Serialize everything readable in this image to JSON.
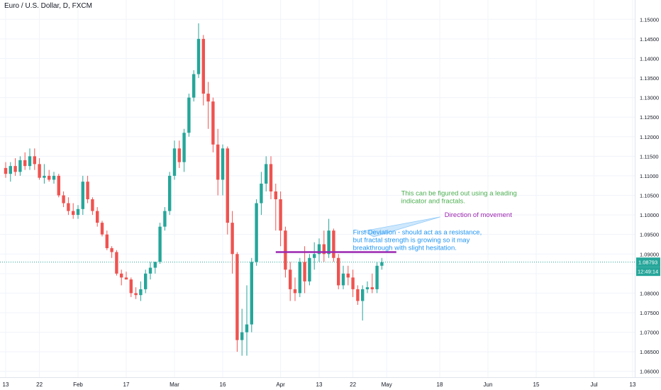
{
  "chart_data": {
    "type": "candlestick",
    "title": "Euro / U.S. Dollar, D, FXCM",
    "colors": {
      "up": "#26a69a",
      "down": "#ef5350",
      "level_line": "#9c27b0",
      "price_line": "#26a69a",
      "grid": "#f0f3fa"
    },
    "ylim": [
      1.0585,
      1.1535
    ],
    "y_ticks": [
      "1.15000",
      "1.14500",
      "1.14000",
      "1.13500",
      "1.13000",
      "1.12500",
      "1.12000",
      "1.11500",
      "1.11000",
      "1.10500",
      "1.10000",
      "1.09500",
      "1.09000",
      "1.08500",
      "1.08000",
      "1.07500",
      "1.07000",
      "1.06500",
      "1.06000"
    ],
    "x_ticks": [
      {
        "label": "13",
        "index": 0
      },
      {
        "label": "22",
        "index": 7
      },
      {
        "label": "Feb",
        "index": 15
      },
      {
        "label": "17",
        "index": 25
      },
      {
        "label": "Mar",
        "index": 35
      },
      {
        "label": "16",
        "index": 45
      },
      {
        "label": "Apr",
        "index": 57
      },
      {
        "label": "13",
        "index": 65
      },
      {
        "label": "22",
        "index": 72
      },
      {
        "label": "May",
        "index": 79
      },
      {
        "label": "18",
        "index": 90
      },
      {
        "label": "Jun",
        "index": 100
      },
      {
        "label": "15",
        "index": 110
      },
      {
        "label": "Jul",
        "index": 122
      },
      {
        "label": "13",
        "index": 130
      }
    ],
    "candles": [
      {
        "o": 1.112,
        "h": 1.1135,
        "l": 1.1095,
        "c": 1.1105
      },
      {
        "o": 1.1105,
        "h": 1.1135,
        "l": 1.1085,
        "c": 1.1125
      },
      {
        "o": 1.1125,
        "h": 1.1145,
        "l": 1.11,
        "c": 1.111
      },
      {
        "o": 1.111,
        "h": 1.115,
        "l": 1.11,
        "c": 1.114
      },
      {
        "o": 1.114,
        "h": 1.116,
        "l": 1.1115,
        "c": 1.1125
      },
      {
        "o": 1.1125,
        "h": 1.117,
        "l": 1.1115,
        "c": 1.115
      },
      {
        "o": 1.115,
        "h": 1.117,
        "l": 1.1115,
        "c": 1.113
      },
      {
        "o": 1.113,
        "h": 1.1145,
        "l": 1.109,
        "c": 1.1095
      },
      {
        "o": 1.1095,
        "h": 1.113,
        "l": 1.108,
        "c": 1.11
      },
      {
        "o": 1.11,
        "h": 1.1115,
        "l": 1.1085,
        "c": 1.109
      },
      {
        "o": 1.109,
        "h": 1.111,
        "l": 1.108,
        "c": 1.11
      },
      {
        "o": 1.11,
        "h": 1.1105,
        "l": 1.1045,
        "c": 1.105
      },
      {
        "o": 1.105,
        "h": 1.106,
        "l": 1.102,
        "c": 1.103
      },
      {
        "o": 1.103,
        "h": 1.1045,
        "l": 1.1,
        "c": 1.101
      },
      {
        "o": 1.101,
        "h": 1.103,
        "l": 1.099,
        "c": 1.1
      },
      {
        "o": 1.1,
        "h": 1.1025,
        "l": 1.099,
        "c": 1.1015
      },
      {
        "o": 1.1015,
        "h": 1.11,
        "l": 1.1,
        "c": 1.1085
      },
      {
        "o": 1.1085,
        "h": 1.11,
        "l": 1.103,
        "c": 1.104
      },
      {
        "o": 1.104,
        "h": 1.1045,
        "l": 1.1,
        "c": 1.101
      },
      {
        "o": 1.101,
        "h": 1.102,
        "l": 1.097,
        "c": 1.098
      },
      {
        "o": 1.098,
        "h": 1.0985,
        "l": 1.0945,
        "c": 1.095
      },
      {
        "o": 1.095,
        "h": 1.096,
        "l": 1.091,
        "c": 1.0915
      },
      {
        "o": 1.0915,
        "h": 1.092,
        "l": 1.089,
        "c": 1.0905
      },
      {
        "o": 1.0905,
        "h": 1.091,
        "l": 1.0845,
        "c": 1.085
      },
      {
        "o": 1.085,
        "h": 1.086,
        "l": 1.082,
        "c": 1.084
      },
      {
        "o": 1.084,
        "h": 1.0855,
        "l": 1.0835,
        "c": 1.0835
      },
      {
        "o": 1.0835,
        "h": 1.084,
        "l": 1.079,
        "c": 1.08
      },
      {
        "o": 1.08,
        "h": 1.0815,
        "l": 1.0785,
        "c": 1.0795
      },
      {
        "o": 1.0795,
        "h": 1.083,
        "l": 1.078,
        "c": 1.081
      },
      {
        "o": 1.081,
        "h": 1.086,
        "l": 1.08,
        "c": 1.085
      },
      {
        "o": 1.085,
        "h": 1.088,
        "l": 1.0835,
        "c": 1.0865
      },
      {
        "o": 1.0865,
        "h": 1.088,
        "l": 1.085,
        "c": 1.088
      },
      {
        "o": 1.088,
        "h": 1.098,
        "l": 1.0875,
        "c": 1.097
      },
      {
        "o": 1.097,
        "h": 1.102,
        "l": 1.096,
        "c": 1.101
      },
      {
        "o": 1.101,
        "h": 1.111,
        "l": 1.1,
        "c": 1.11
      },
      {
        "o": 1.11,
        "h": 1.119,
        "l": 1.109,
        "c": 1.117
      },
      {
        "o": 1.117,
        "h": 1.119,
        "l": 1.112,
        "c": 1.1135
      },
      {
        "o": 1.1135,
        "h": 1.122,
        "l": 1.111,
        "c": 1.121
      },
      {
        "o": 1.121,
        "h": 1.131,
        "l": 1.12,
        "c": 1.13
      },
      {
        "o": 1.13,
        "h": 1.137,
        "l": 1.129,
        "c": 1.136
      },
      {
        "o": 1.136,
        "h": 1.149,
        "l": 1.135,
        "c": 1.145
      },
      {
        "o": 1.145,
        "h": 1.146,
        "l": 1.128,
        "c": 1.131
      },
      {
        "o": 1.131,
        "h": 1.134,
        "l": 1.122,
        "c": 1.129
      },
      {
        "o": 1.129,
        "h": 1.13,
        "l": 1.116,
        "c": 1.118
      },
      {
        "o": 1.118,
        "h": 1.122,
        "l": 1.105,
        "c": 1.109
      },
      {
        "o": 1.109,
        "h": 1.118,
        "l": 1.105,
        "c": 1.117
      },
      {
        "o": 1.117,
        "h": 1.1175,
        "l": 1.095,
        "c": 1.098
      },
      {
        "o": 1.098,
        "h": 1.101,
        "l": 1.085,
        "c": 1.09
      },
      {
        "o": 1.09,
        "h": 1.0905,
        "l": 1.065,
        "c": 1.068
      },
      {
        "o": 1.068,
        "h": 1.076,
        "l": 1.064,
        "c": 1.07
      },
      {
        "o": 1.07,
        "h": 1.082,
        "l": 1.064,
        "c": 1.072
      },
      {
        "o": 1.072,
        "h": 1.089,
        "l": 1.07,
        "c": 1.088
      },
      {
        "o": 1.088,
        "h": 1.104,
        "l": 1.087,
        "c": 1.103
      },
      {
        "o": 1.103,
        "h": 1.111,
        "l": 1.1,
        "c": 1.108
      },
      {
        "o": 1.108,
        "h": 1.115,
        "l": 1.106,
        "c": 1.113
      },
      {
        "o": 1.113,
        "h": 1.115,
        "l": 1.104,
        "c": 1.106
      },
      {
        "o": 1.106,
        "h": 1.108,
        "l": 1.096,
        "c": 1.104
      },
      {
        "o": 1.104,
        "h": 1.106,
        "l": 1.092,
        "c": 1.096
      },
      {
        "o": 1.096,
        "h": 1.097,
        "l": 1.084,
        "c": 1.086
      },
      {
        "o": 1.086,
        "h": 1.088,
        "l": 1.078,
        "c": 1.081
      },
      {
        "o": 1.081,
        "h": 1.084,
        "l": 1.078,
        "c": 1.08
      },
      {
        "o": 1.08,
        "h": 1.089,
        "l": 1.079,
        "c": 1.088
      },
      {
        "o": 1.088,
        "h": 1.092,
        "l": 1.08,
        "c": 1.083
      },
      {
        "o": 1.083,
        "h": 1.09,
        "l": 1.082,
        "c": 1.089
      },
      {
        "o": 1.089,
        "h": 1.093,
        "l": 1.086,
        "c": 1.09
      },
      {
        "o": 1.09,
        "h": 1.094,
        "l": 1.088,
        "c": 1.0925
      },
      {
        "o": 1.0925,
        "h": 1.096,
        "l": 1.088,
        "c": 1.09
      },
      {
        "o": 1.09,
        "h": 1.099,
        "l": 1.089,
        "c": 1.096
      },
      {
        "o": 1.096,
        "h": 1.0965,
        "l": 1.088,
        "c": 1.089
      },
      {
        "o": 1.089,
        "h": 1.09,
        "l": 1.081,
        "c": 1.082
      },
      {
        "o": 1.082,
        "h": 1.087,
        "l": 1.081,
        "c": 1.085
      },
      {
        "o": 1.085,
        "h": 1.087,
        "l": 1.082,
        "c": 1.084
      },
      {
        "o": 1.084,
        "h": 1.086,
        "l": 1.079,
        "c": 1.081
      },
      {
        "o": 1.081,
        "h": 1.082,
        "l": 1.077,
        "c": 1.078
      },
      {
        "o": 1.078,
        "h": 1.082,
        "l": 1.073,
        "c": 1.081
      },
      {
        "o": 1.081,
        "h": 1.083,
        "l": 1.08,
        "c": 1.0815
      },
      {
        "o": 1.0815,
        "h": 1.085,
        "l": 1.08,
        "c": 1.081
      },
      {
        "o": 1.081,
        "h": 1.088,
        "l": 1.08,
        "c": 1.087
      },
      {
        "o": 1.087,
        "h": 1.089,
        "l": 1.086,
        "c": 1.0879
      }
    ],
    "horizontal_level": {
      "value": 1.0905,
      "from_index": 56,
      "to_index": 81
    },
    "last_price": {
      "value": 1.08793,
      "label": "1.08793",
      "countdown": "12:49:14"
    },
    "annotations": [
      {
        "text": "This can be figured out using a leading indicator and fractals.",
        "color": "#4caf50",
        "index": 82,
        "y": 1.105
      },
      {
        "text": "Direction of movement",
        "color": "#9c27b0",
        "index": 91,
        "y": 1.0995
      },
      {
        "text": "First Deviation - should act as a resistance, but fractal strength is growing so it may breakthrough with slight hesitation.",
        "color": "#2196f3",
        "index": 72,
        "y": 1.095
      }
    ]
  }
}
